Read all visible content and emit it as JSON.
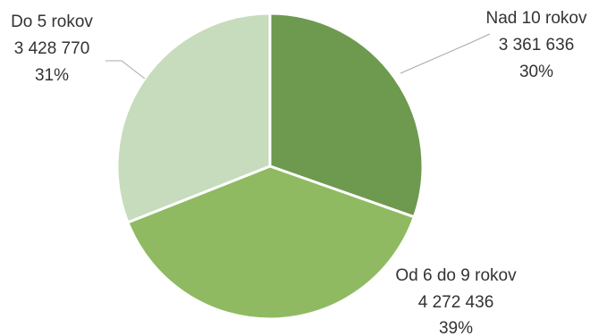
{
  "chart_data": {
    "type": "pie",
    "slices": [
      {
        "label": "Nad 10 rokov",
        "value": 3361636,
        "value_text": "3 361 636",
        "percent_text": "30%",
        "color": "#6e9a4f"
      },
      {
        "label": "Od 6 do 9 rokov",
        "value": 4272436,
        "value_text": "4 272 436",
        "percent_text": "39%",
        "color": "#8fba62"
      },
      {
        "label": "Do 5 rokov",
        "value": 3428770,
        "value_text": "3 428 770",
        "percent_text": "31%",
        "color": "#c6dcbc"
      }
    ]
  }
}
